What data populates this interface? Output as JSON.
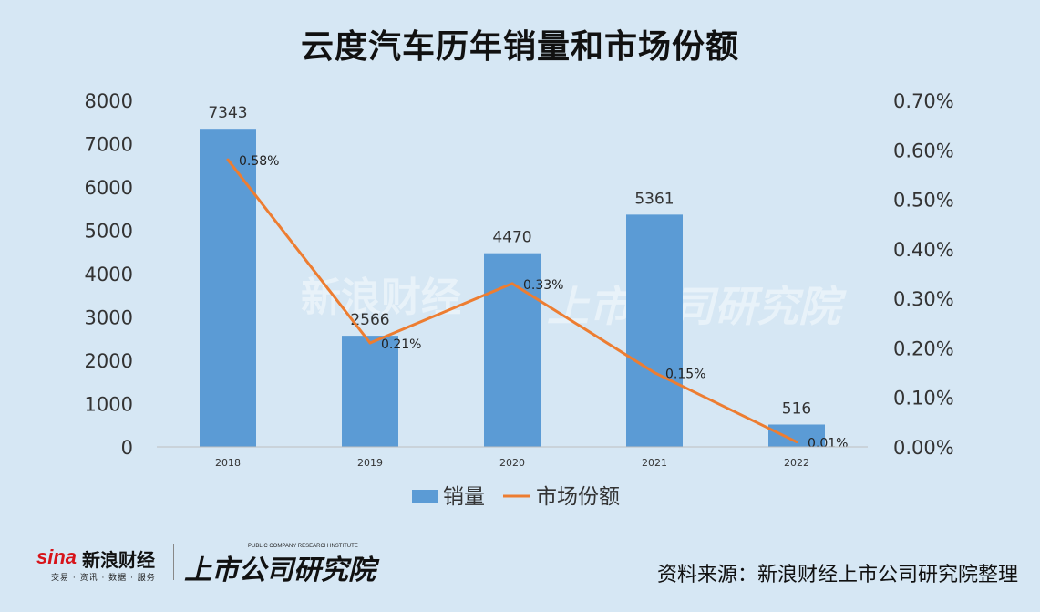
{
  "title": "云度汽车历年销量和市场份额",
  "source": "资料来源：新浪财经上市公司研究院整理",
  "branding": {
    "sina": "sina",
    "sina_cn": "新浪财经",
    "sina_tagline": "交易 · 资讯 · 数据 · 服务",
    "institute": "上市公司研究院",
    "institute_en": "PUBLIC COMPANY RESEARCH INSTITUTE"
  },
  "colors": {
    "background": "#d6e7f4",
    "bar": "#5b9bd5",
    "line": "#ed7d31"
  },
  "chart_data": {
    "type": "bar",
    "categories": [
      "2018",
      "2019",
      "2020",
      "2021",
      "2022"
    ],
    "series": [
      {
        "name": "销量",
        "type": "bar",
        "axis": "left",
        "values": [
          7343,
          2566,
          4470,
          5361,
          516
        ],
        "labels": [
          "7343",
          "2566",
          "4470",
          "5361",
          "516"
        ]
      },
      {
        "name": "市场份额",
        "type": "line",
        "axis": "right",
        "values": [
          0.58,
          0.21,
          0.33,
          0.15,
          0.01
        ],
        "labels": [
          "0.58%",
          "0.21%",
          "0.33%",
          "0.15%",
          "0.01%"
        ]
      }
    ],
    "ylim_left": [
      0,
      8000
    ],
    "yticks_left": [
      "0",
      "1000",
      "2000",
      "3000",
      "4000",
      "5000",
      "6000",
      "7000",
      "8000"
    ],
    "ylim_right": [
      0,
      0.7
    ],
    "yticks_right": [
      "0.00%",
      "0.10%",
      "0.20%",
      "0.30%",
      "0.40%",
      "0.50%",
      "0.60%",
      "0.70%"
    ],
    "grid": false,
    "legend": "bottom"
  }
}
